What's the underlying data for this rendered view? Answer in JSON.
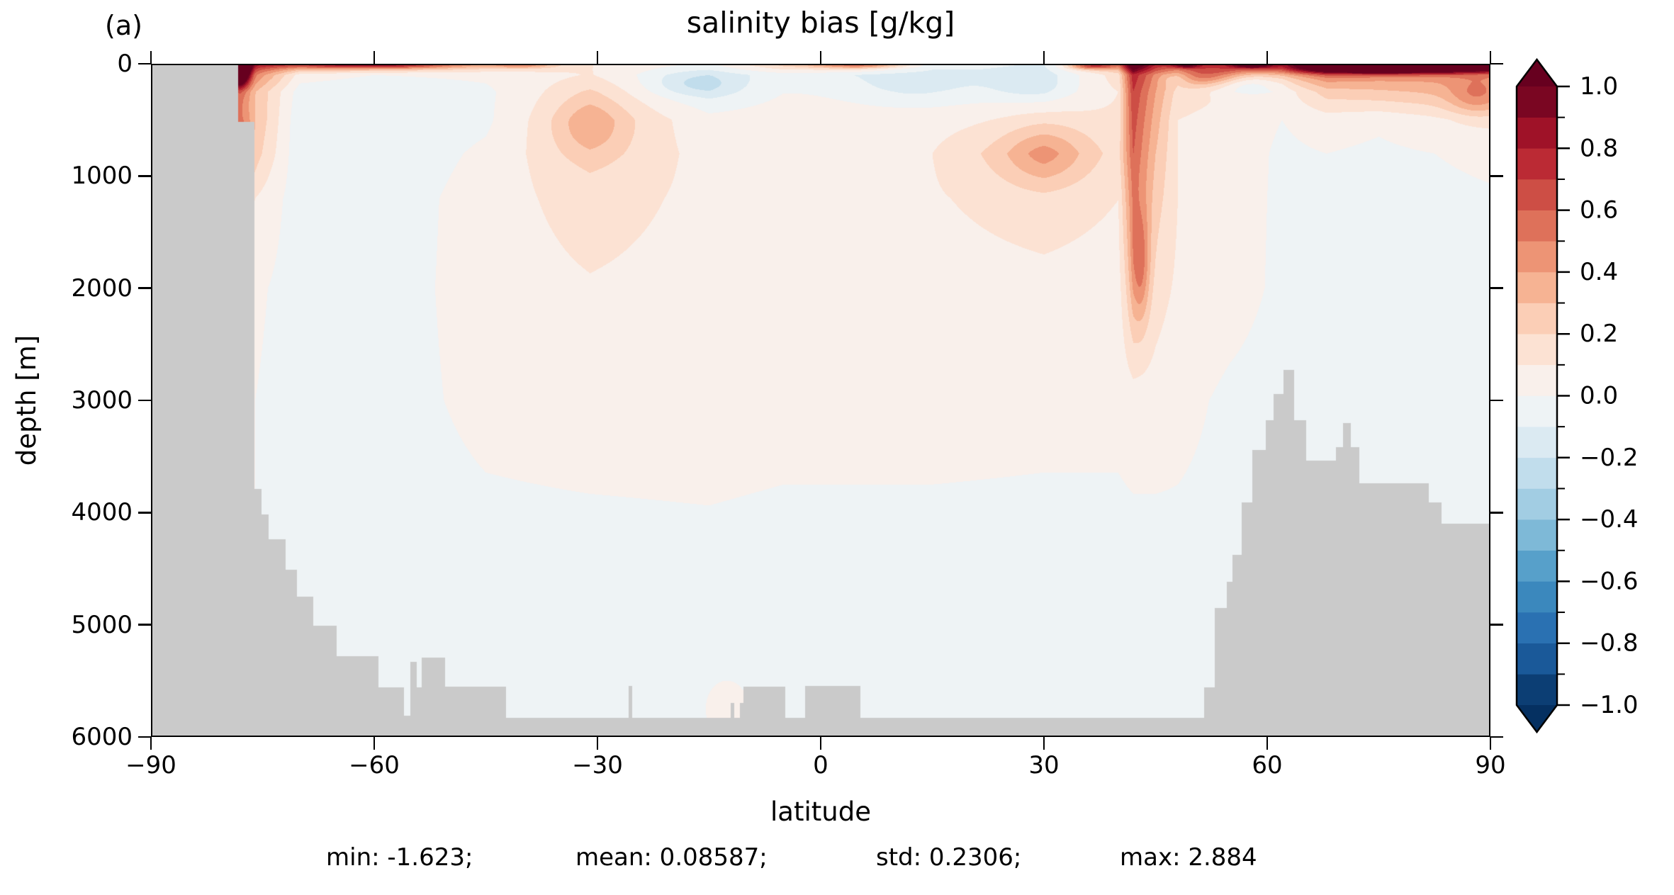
{
  "panel_label": "(a)",
  "title": "salinity bias [g/kg]",
  "xlabel": "latitude",
  "ylabel": "depth [m]",
  "stats_text": {
    "min": "min: -1.623;",
    "mean": "mean: 0.08587;",
    "std": "std: 0.2306;",
    "max": "max: 2.884"
  },
  "chart_data": {
    "type": "heatmap",
    "title": "salinity bias [g/kg]",
    "xlabel": "latitude",
    "ylabel": "depth [m]",
    "xlim": [
      -90,
      90
    ],
    "ylim": [
      0,
      6000
    ],
    "y_inverted": true,
    "x_ticks": [
      -90,
      -60,
      -30,
      0,
      30,
      60,
      90
    ],
    "y_ticks": [
      0,
      1000,
      2000,
      3000,
      4000,
      5000,
      6000
    ],
    "stats": {
      "min": -1.623,
      "mean": 0.08587,
      "std": 0.2306,
      "max": 2.884
    },
    "land_color": "#cacaca",
    "colorbar": {
      "levels_min": -1.0,
      "levels_max": 1.0,
      "level_step": 0.1,
      "major_ticks": [
        1.0,
        0.8,
        0.6,
        0.4,
        0.2,
        0.0,
        -0.2,
        -0.4,
        -0.6,
        -0.8,
        -1.0
      ],
      "minor_tick_step": 0.1,
      "extend": "both",
      "cmap_name": "RdBu_r",
      "cmap_anchors": [
        "#053061",
        "#2166ac",
        "#4393c3",
        "#92c5de",
        "#d1e5f0",
        "#f7f7f7",
        "#fddbc7",
        "#f4a582",
        "#d6604d",
        "#b2182b",
        "#67001f"
      ],
      "over_color": "#67001f",
      "under_color": "#053061"
    },
    "grid": {
      "lats": [
        -90,
        -78,
        -76,
        -70,
        -60,
        -45,
        -31,
        -15,
        -5,
        5,
        15,
        30,
        40,
        42,
        45,
        48,
        55,
        62,
        68,
        75,
        90
      ],
      "depths": [
        0,
        100,
        250,
        500,
        800,
        1200,
        2000,
        3000,
        4500,
        6000
      ],
      "values": [
        [
          0.3,
          1.6,
          0.8,
          0.55,
          0.5,
          0.3,
          0.1,
          0.0,
          0.25,
          0.3,
          -0.05,
          -0.1,
          0.45,
          1.3,
          0.8,
          0.55,
          0.7,
          0.6,
          1.25,
          1.35,
          1.3
        ],
        [
          0.2,
          1.0,
          0.5,
          0.05,
          0.0,
          0.02,
          0.1,
          -0.12,
          -0.05,
          -0.08,
          -0.1,
          -0.12,
          0.15,
          0.75,
          0.45,
          0.3,
          0.35,
          0.3,
          0.5,
          0.45,
          0.45
        ],
        [
          0.1,
          0.55,
          0.3,
          -0.05,
          -0.08,
          -0.02,
          0.18,
          -0.1,
          0.0,
          0.0,
          -0.02,
          -0.05,
          0.1,
          0.7,
          0.4,
          0.15,
          0.1,
          0.05,
          0.25,
          0.28,
          0.35
        ],
        [
          0.1,
          0.5,
          0.3,
          -0.08,
          -0.08,
          -0.02,
          0.25,
          0.03,
          0.05,
          0.05,
          0.06,
          0.12,
          0.12,
          0.65,
          0.35,
          0.1,
          0.06,
          0.0,
          0.05,
          0.02,
          0.12
        ],
        [
          0.1,
          0.4,
          0.25,
          -0.08,
          -0.08,
          0.02,
          0.22,
          0.06,
          0.06,
          0.06,
          0.1,
          0.3,
          0.15,
          0.6,
          0.3,
          0.1,
          0.06,
          -0.02,
          0.0,
          -0.02,
          0.02
        ],
        [
          0.05,
          0.15,
          0.1,
          -0.06,
          -0.07,
          0.05,
          0.15,
          0.07,
          0.06,
          0.06,
          0.09,
          0.15,
          0.1,
          0.5,
          0.25,
          0.1,
          0.05,
          -0.02,
          -0.03,
          -0.03,
          -0.01
        ],
        [
          0.0,
          0.03,
          0.02,
          -0.05,
          -0.06,
          0.05,
          0.09,
          0.06,
          0.05,
          0.05,
          0.06,
          0.07,
          0.06,
          0.3,
          0.15,
          0.08,
          0.04,
          -0.02,
          -0.04,
          -0.04,
          -0.02
        ],
        [
          0.0,
          0.0,
          0.0,
          -0.05,
          -0.05,
          0.03,
          0.05,
          0.05,
          0.04,
          0.04,
          0.04,
          0.03,
          0.03,
          0.05,
          0.05,
          0.03,
          -0.02,
          -0.04,
          -0.04,
          -0.04,
          -0.02
        ],
        [
          0.0,
          0.0,
          0.0,
          -0.05,
          -0.05,
          -0.04,
          -0.04,
          -0.03,
          -0.04,
          -0.04,
          -0.04,
          -0.04,
          -0.04,
          -0.04,
          -0.04,
          -0.03,
          -0.03,
          -0.04,
          -0.04,
          -0.04,
          -0.02
        ],
        [
          0.0,
          0.0,
          0.0,
          -0.05,
          -0.05,
          -0.04,
          -0.03,
          -0.03,
          -0.04,
          -0.04,
          -0.04,
          -0.04,
          -0.04,
          -0.04,
          -0.04,
          -0.03,
          -0.03,
          -0.04,
          -0.04,
          -0.04,
          -0.02
        ]
      ]
    },
    "features": [
      {
        "lat": 43,
        "dep": 1800,
        "slat": 1.2,
        "sdep": 500,
        "amp": 0.28
      },
      {
        "lat": -78,
        "dep": 50,
        "slat": 1.2,
        "sdep": 130,
        "amp": 0.9
      },
      {
        "lat": -77.3,
        "dep": 780,
        "slat": 0.8,
        "sdep": 220,
        "amp": 0.25
      },
      {
        "lat": 76,
        "dep": 30,
        "slat": 13,
        "sdep": 60,
        "amp": 0.8
      },
      {
        "lat": -60,
        "dep": 12,
        "slat": 11,
        "sdep": 30,
        "amp": 0.45
      },
      {
        "lat": 30,
        "dep": 800,
        "slat": 5.5,
        "sdep": 280,
        "amp": 0.15
      },
      {
        "lat": -31,
        "dep": 550,
        "slat": 5,
        "sdep": 260,
        "amp": 0.15
      },
      {
        "lat": 88,
        "dep": 300,
        "slat": 3.5,
        "sdep": 160,
        "amp": 0.2
      },
      {
        "lat": -17,
        "dep": 180,
        "slat": 6,
        "sdep": 110,
        "amp": -0.15
      },
      {
        "lat": 12,
        "dep": 220,
        "slat": 8,
        "sdep": 150,
        "amp": -0.1
      },
      {
        "lat": 28,
        "dep": 200,
        "slat": 5,
        "sdep": 120,
        "amp": -0.1
      },
      {
        "lat": 57,
        "dep": 160,
        "slat": 4.5,
        "sdep": 100,
        "amp": -0.28
      },
      {
        "lat": 47.5,
        "dep": 130,
        "slat": 2.5,
        "sdep": 70,
        "amp": -0.2
      },
      {
        "lat": 36.5,
        "dep": 20,
        "slat": 3,
        "sdep": 30,
        "amp": 0.5
      },
      {
        "lat": 5,
        "dep": 15,
        "slat": 6,
        "sdep": 25,
        "amp": 0.3
      },
      {
        "lat": -40,
        "dep": 15,
        "slat": 4,
        "sdep": 25,
        "amp": 0.25
      },
      {
        "lat": 52,
        "dep": 110,
        "slat": 6,
        "sdep": 90,
        "amp": 0.3
      },
      {
        "lat": -12.5,
        "dep": 5750,
        "slat": 2.5,
        "sdep": 220,
        "amp": 0.12
      },
      {
        "lat": 49,
        "dep": 15,
        "slat": 2,
        "sdep": 25,
        "amp": 0.45
      },
      {
        "lat": 58,
        "dep": 15,
        "slat": 2.5,
        "sdep": 25,
        "amp": 0.5
      }
    ],
    "bathymetry_steps": [
      [
        -90,
        -78.3,
        0
      ],
      [
        -78.3,
        -76.1,
        520
      ],
      [
        -76.1,
        -75.1,
        3790
      ],
      [
        -75.1,
        -74.2,
        4020
      ],
      [
        -74.2,
        -71.9,
        4240
      ],
      [
        -71.9,
        -70.4,
        4510
      ],
      [
        -70.4,
        -68.2,
        4750
      ],
      [
        -68.2,
        -65,
        5010
      ],
      [
        -65,
        -59.4,
        5280
      ],
      [
        -59.4,
        -56,
        5560
      ],
      [
        -56,
        -55.1,
        5810
      ],
      [
        -55.1,
        -54.3,
        5330
      ],
      [
        -54.3,
        -53.6,
        5560
      ],
      [
        -53.6,
        -50.5,
        5290
      ],
      [
        -50.5,
        -42.3,
        5550
      ],
      [
        -42.3,
        -25.8,
        5830
      ],
      [
        -25.8,
        -25.3,
        5545
      ],
      [
        -25.3,
        -12.1,
        5830
      ],
      [
        -12.1,
        -11.6,
        5700
      ],
      [
        -11.6,
        -10.9,
        5830
      ],
      [
        -10.9,
        -10.4,
        5700
      ],
      [
        -10.4,
        -4.8,
        5550
      ],
      [
        -4.8,
        -2.1,
        5830
      ],
      [
        -2.1,
        5.3,
        5545
      ],
      [
        5.3,
        51.5,
        5830
      ],
      [
        51.5,
        53,
        5560
      ],
      [
        53,
        54.6,
        4850
      ],
      [
        54.6,
        55.3,
        4615
      ],
      [
        55.3,
        56.6,
        4380
      ],
      [
        56.6,
        58,
        3910
      ],
      [
        58,
        59.8,
        3440
      ],
      [
        59.8,
        60.9,
        3180
      ],
      [
        60.9,
        62.2,
        2945
      ],
      [
        62.2,
        63.6,
        2730
      ],
      [
        63.6,
        65.2,
        3180
      ],
      [
        65.2,
        69.2,
        3540
      ],
      [
        69.2,
        70.2,
        3420
      ],
      [
        70.2,
        71.2,
        3200
      ],
      [
        71.2,
        72.4,
        3420
      ],
      [
        72.4,
        81.7,
        3740
      ],
      [
        81.7,
        83.4,
        3910
      ],
      [
        83.4,
        90.1,
        4100
      ]
    ]
  }
}
